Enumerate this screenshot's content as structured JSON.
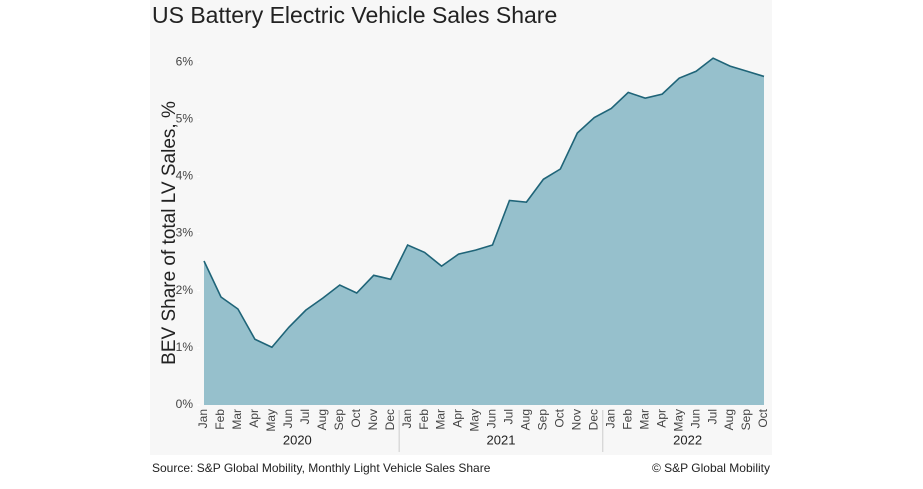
{
  "chart_data": {
    "type": "area",
    "title": "US Battery Electric Vehicle Sales Share",
    "y_label": "BEV Share of total LV Sales, %",
    "groups": [
      {
        "name": "2020",
        "categories": [
          "Jan",
          "Feb",
          "Mar",
          "Apr",
          "May",
          "Jun",
          "Jul",
          "Aug",
          "Sep",
          "Oct",
          "Nov",
          "Dec"
        ]
      },
      {
        "name": "2021",
        "categories": [
          "Jan",
          "Feb",
          "Mar",
          "Apr",
          "May",
          "Jun",
          "Jul",
          "Aug",
          "Sep",
          "Oct",
          "Nov",
          "Dec"
        ]
      },
      {
        "name": "2022",
        "categories": [
          "Jan",
          "Feb",
          "Mar",
          "Apr",
          "May",
          "Jun",
          "Jul",
          "Aug",
          "Sep",
          "Oct"
        ]
      }
    ],
    "values": [
      2.52,
      1.89,
      1.68,
      1.15,
      1.01,
      1.36,
      1.66,
      1.87,
      2.1,
      1.96,
      2.27,
      2.2,
      2.8,
      2.67,
      2.43,
      2.64,
      2.71,
      2.8,
      3.58,
      3.55,
      3.95,
      4.13,
      4.76,
      5.03,
      5.19,
      5.47,
      5.37,
      5.44,
      5.72,
      5.84,
      6.07,
      5.93,
      5.84,
      5.75
    ],
    "color": "#96c0cc",
    "line_color": "#1f6478",
    "ylim": [
      0,
      6.3
    ],
    "yticks": [
      {
        "value": 0,
        "label": "0%"
      },
      {
        "value": 1,
        "label": "1%"
      },
      {
        "value": 2,
        "label": "2%"
      },
      {
        "value": 3,
        "label": "3%"
      },
      {
        "value": 4,
        "label": "4%"
      },
      {
        "value": 5,
        "label": "5%"
      },
      {
        "value": 6,
        "label": "6%"
      }
    ],
    "grid": false,
    "source": "Source: S&P Global Mobility, Monthly Light Vehicle Sales Share",
    "copyright": "© S&P Global Mobility"
  }
}
